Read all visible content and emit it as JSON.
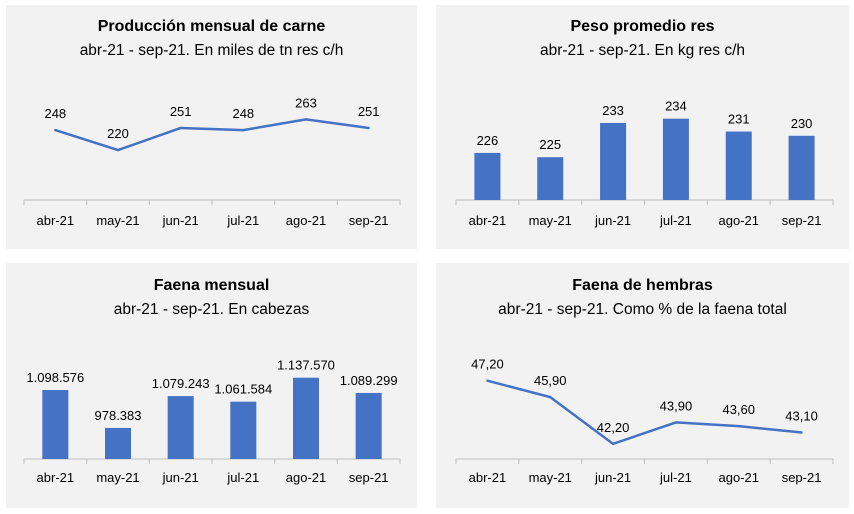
{
  "chart_data": [
    {
      "type": "line",
      "title": "Producción mensual de carne",
      "subtitle": "abr-21 - sep-21. En miles de tn res c/h",
      "categories": [
        "abr-21",
        "may-21",
        "jun-21",
        "jul-21",
        "ago-21",
        "sep-21"
      ],
      "values": [
        248,
        220,
        251,
        248,
        263,
        251
      ],
      "labels": [
        "248",
        "220",
        "251",
        "248",
        "263",
        "251"
      ],
      "ylim": [
        150,
        300
      ],
      "color": "#4472C4",
      "grid": false
    },
    {
      "type": "bar",
      "title": "Peso promedio res",
      "subtitle": "abr-21 - sep-21. En kg res c/h",
      "categories": [
        "abr-21",
        "may-21",
        "jun-21",
        "jul-21",
        "ago-21",
        "sep-21"
      ],
      "values": [
        226,
        225,
        233,
        234,
        231,
        230
      ],
      "labels": [
        "226",
        "225",
        "233",
        "234",
        "231",
        "230"
      ],
      "ylim": [
        215,
        240
      ],
      "color": "#4472C4",
      "grid": false
    },
    {
      "type": "bar",
      "title": "Faena mensual",
      "subtitle": "abr-21 - sep-21. En cabezas",
      "categories": [
        "abr-21",
        "may-21",
        "jun-21",
        "jul-21",
        "ago-21",
        "sep-21"
      ],
      "values": [
        1098576,
        978383,
        1079243,
        1061584,
        1137570,
        1089299
      ],
      "labels": [
        "1.098.576",
        "978.383",
        "1.079.243",
        "1.061.584",
        "1.137.570",
        "1.089.299"
      ],
      "ylim": [
        880000,
        1200000
      ],
      "color": "#4472C4",
      "grid": false
    },
    {
      "type": "line",
      "title": "Faena de hembras",
      "subtitle": "abr-21 - sep-21. Como % de la faena total",
      "categories": [
        "abr-21",
        "may-21",
        "jun-21",
        "jul-21",
        "ago-21",
        "sep-21"
      ],
      "values": [
        47.2,
        45.9,
        42.2,
        43.9,
        43.6,
        43.1
      ],
      "labels": [
        "47,20",
        "45,90",
        "42,20",
        "43,90",
        "43,60",
        "43,10"
      ],
      "ylim": [
        41,
        49
      ],
      "color": "#4472C4",
      "grid": false
    }
  ]
}
